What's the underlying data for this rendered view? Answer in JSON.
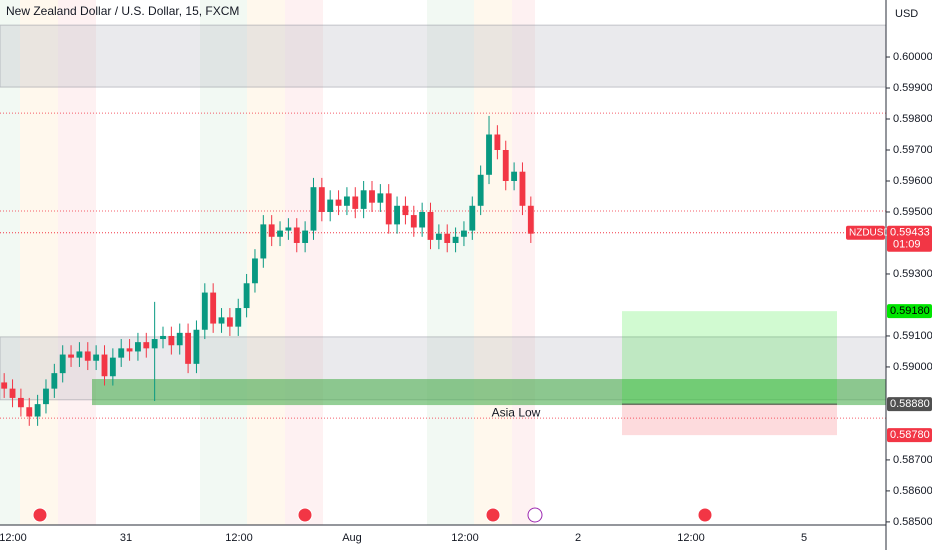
{
  "chart_data": {
    "type": "candlestick",
    "title": "New Zealand Dollar / U.S. Dollar, 15, FXCM",
    "currency": "USD",
    "annotation": "Asia Low",
    "up_color": "#089981",
    "down_color": "#f23645",
    "open": [
      0.5895,
      0.5893,
      0.589,
      0.5887,
      0.5884,
      0.5888,
      0.5893,
      0.5898,
      0.5904,
      0.5903,
      0.5905,
      0.5902,
      0.5904,
      0.5897,
      0.5903,
      0.5906,
      0.5905,
      0.5908,
      0.5906,
      0.5909,
      0.591,
      0.5907,
      0.5911,
      0.5901,
      0.5912,
      0.5924,
      0.5914,
      0.5916,
      0.5913,
      0.5919,
      0.5927,
      0.5935,
      0.5946,
      0.5942,
      0.5944,
      0.5945,
      0.594,
      0.5944,
      0.5958,
      0.595,
      0.5954,
      0.5952,
      0.5955,
      0.5951,
      0.5957,
      0.5953,
      0.5956,
      0.5946,
      0.5952,
      0.5949,
      0.5945,
      0.595,
      0.5941,
      0.5943,
      0.594,
      0.5942,
      0.5944,
      0.5952,
      0.5962,
      0.5975,
      0.597,
      0.596,
      0.5963,
      0.5952
    ],
    "high": [
      0.5898,
      0.5896,
      0.5893,
      0.589,
      0.5891,
      0.5896,
      0.5901,
      0.5907,
      0.5907,
      0.5908,
      0.5908,
      0.5907,
      0.5907,
      0.5906,
      0.5909,
      0.5909,
      0.5911,
      0.5911,
      0.5921,
      0.5913,
      0.5913,
      0.5914,
      0.5914,
      0.5915,
      0.5927,
      0.5927,
      0.5919,
      0.5919,
      0.5922,
      0.593,
      0.5938,
      0.5949,
      0.5949,
      0.5947,
      0.5948,
      0.5948,
      0.5947,
      0.5961,
      0.5961,
      0.5957,
      0.5957,
      0.5958,
      0.5958,
      0.596,
      0.596,
      0.5959,
      0.5959,
      0.5955,
      0.5955,
      0.5952,
      0.5953,
      0.5953,
      0.5946,
      0.5946,
      0.5945,
      0.5947,
      0.5955,
      0.5965,
      0.5981,
      0.5978,
      0.5973,
      0.5966,
      0.5966,
      0.5955
    ],
    "low": [
      0.589,
      0.5887,
      0.5884,
      0.5881,
      0.5881,
      0.5885,
      0.589,
      0.5895,
      0.59,
      0.59,
      0.5899,
      0.5899,
      0.5894,
      0.5894,
      0.59,
      0.5902,
      0.5902,
      0.5903,
      0.5889,
      0.5906,
      0.5904,
      0.5904,
      0.5898,
      0.5898,
      0.5909,
      0.5911,
      0.5911,
      0.591,
      0.591,
      0.5916,
      0.5924,
      0.5932,
      0.5939,
      0.5939,
      0.5941,
      0.5937,
      0.5937,
      0.5941,
      0.5947,
      0.5947,
      0.5949,
      0.5949,
      0.5948,
      0.5948,
      0.595,
      0.595,
      0.5943,
      0.5943,
      0.5946,
      0.5942,
      0.5942,
      0.5938,
      0.5938,
      0.5937,
      0.5937,
      0.5939,
      0.5941,
      0.5949,
      0.5959,
      0.5967,
      0.5957,
      0.5957,
      0.5949,
      0.594
    ],
    "close": [
      0.5893,
      0.589,
      0.5887,
      0.5884,
      0.5888,
      0.5893,
      0.5898,
      0.5904,
      0.5903,
      0.5905,
      0.5902,
      0.5904,
      0.5897,
      0.5903,
      0.5906,
      0.5905,
      0.5908,
      0.5906,
      0.5909,
      0.591,
      0.5907,
      0.5911,
      0.5901,
      0.5912,
      0.5924,
      0.5914,
      0.5916,
      0.5913,
      0.5919,
      0.5927,
      0.5935,
      0.5946,
      0.5942,
      0.5944,
      0.5945,
      0.594,
      0.5944,
      0.5958,
      0.595,
      0.5954,
      0.5952,
      0.5955,
      0.5951,
      0.5957,
      0.5953,
      0.5956,
      0.5946,
      0.5952,
      0.5949,
      0.5945,
      0.595,
      0.5941,
      0.5943,
      0.594,
      0.5942,
      0.5944,
      0.5952,
      0.5962,
      0.5975,
      0.597,
      0.596,
      0.5963,
      0.5952,
      0.5943
    ],
    "ylim": [
      0.5849,
      0.60184
    ],
    "yticks": [
      {
        "value": 0.6,
        "label": "0.60000"
      },
      {
        "value": 0.599,
        "label": "0.59900"
      },
      {
        "value": 0.598,
        "label": "0.59800"
      },
      {
        "value": 0.597,
        "label": "0.59700"
      },
      {
        "value": 0.596,
        "label": "0.59600"
      },
      {
        "value": 0.595,
        "label": "0.59500"
      },
      {
        "value": 0.593,
        "label": "0.59300"
      },
      {
        "value": 0.591,
        "label": "0.59100"
      },
      {
        "value": 0.59,
        "label": "0.59000"
      },
      {
        "value": 0.587,
        "label": "0.58700"
      },
      {
        "value": 0.586,
        "label": "0.58600"
      },
      {
        "value": 0.585,
        "label": "0.58500"
      }
    ],
    "xticks": [
      "12:00",
      "31",
      "12:00",
      "Aug",
      "12:00",
      "2",
      "12:00",
      "5"
    ],
    "zones": [
      {
        "top": 0.60103,
        "bottom": 0.59903,
        "color": "rgba(178,181,190,0.28)"
      },
      {
        "top": 0.59097,
        "bottom": 0.58894,
        "color": "rgba(178,181,190,0.28)"
      },
      {
        "top": 0.58961,
        "bottom": 0.58877,
        "color": "rgba(76,175,80,0.6)"
      }
    ],
    "levels": [
      0.59819,
      0.59503,
      0.58835
    ],
    "last": {
      "name": "NZDUSD",
      "value": 0.59433,
      "label": "0.59433",
      "timer": "01:09",
      "color": "#f23645"
    },
    "position": {
      "target": {
        "value": 0.5918,
        "label": "0.59180",
        "color": "#00e600"
      },
      "entry": {
        "value": 0.5888,
        "label": "0.58880",
        "color": "#505050"
      },
      "stop": {
        "value": 0.5878,
        "label": "0.58780",
        "color": "#f23645"
      }
    }
  }
}
